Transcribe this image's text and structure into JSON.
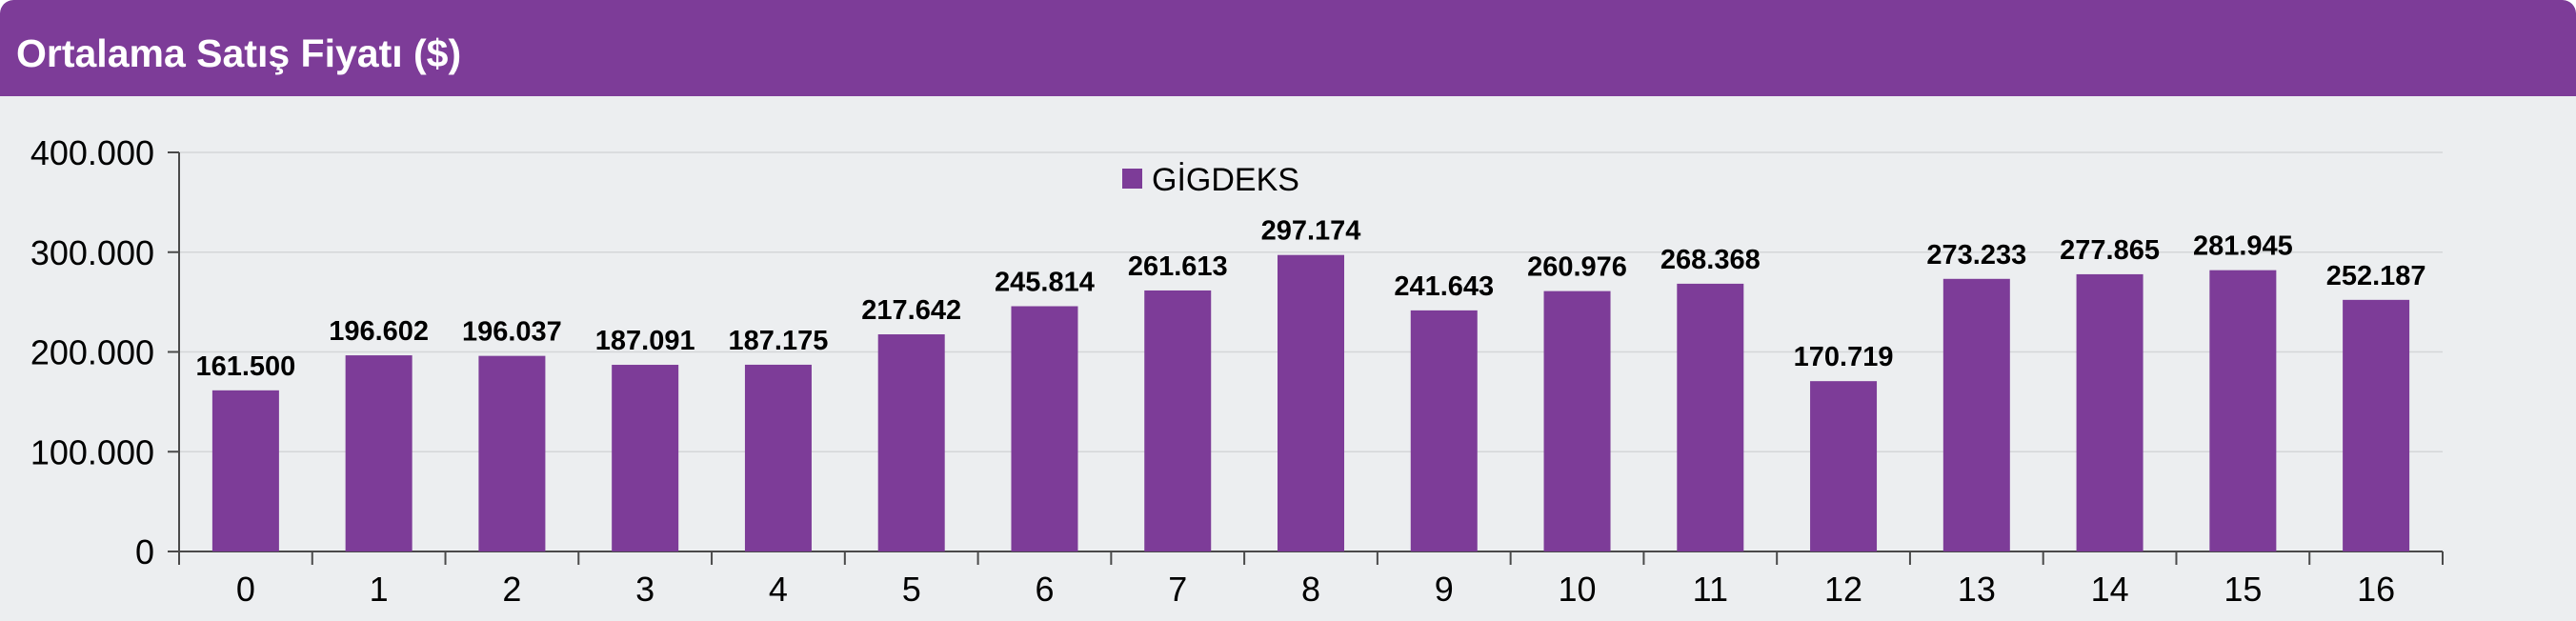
{
  "header": {
    "title": "Ortalama Satış Fiyatı ($)"
  },
  "colors": {
    "accent": "#7d3c98",
    "bar": "#7d3c98",
    "background": "#eceef0",
    "grid": "#d4d6d8",
    "axis": "#4a4a4a",
    "text": "#000000"
  },
  "chart_data": {
    "type": "bar",
    "title": "",
    "xlabel": "",
    "ylabel": "",
    "categories": [
      "0",
      "1",
      "2",
      "3",
      "4",
      "5",
      "6",
      "7",
      "8",
      "9",
      "10",
      "11",
      "12",
      "13",
      "14",
      "15",
      "16"
    ],
    "series": [
      {
        "name": "GİGDEKS",
        "values": [
          161500,
          196602,
          196037,
          187091,
          187175,
          217642,
          245814,
          261613,
          297174,
          241643,
          260976,
          268368,
          170719,
          273233,
          277865,
          281945,
          252187
        ],
        "value_labels": [
          "161.500",
          "196.602",
          "196.037",
          "187.091",
          "187.175",
          "217.642",
          "245.814",
          "261.613",
          "297.174",
          "241.643",
          "260.976",
          "268.368",
          "170.719",
          "273.233",
          "277.865",
          "281.945",
          "252.187"
        ]
      }
    ],
    "yticks": [
      0,
      100000,
      200000,
      300000,
      400000
    ],
    "ytick_labels": [
      "0",
      "100.000",
      "200.000",
      "300.000",
      "400.000"
    ],
    "ylim": [
      0,
      400000
    ],
    "grid": true,
    "legend": "top-center"
  }
}
